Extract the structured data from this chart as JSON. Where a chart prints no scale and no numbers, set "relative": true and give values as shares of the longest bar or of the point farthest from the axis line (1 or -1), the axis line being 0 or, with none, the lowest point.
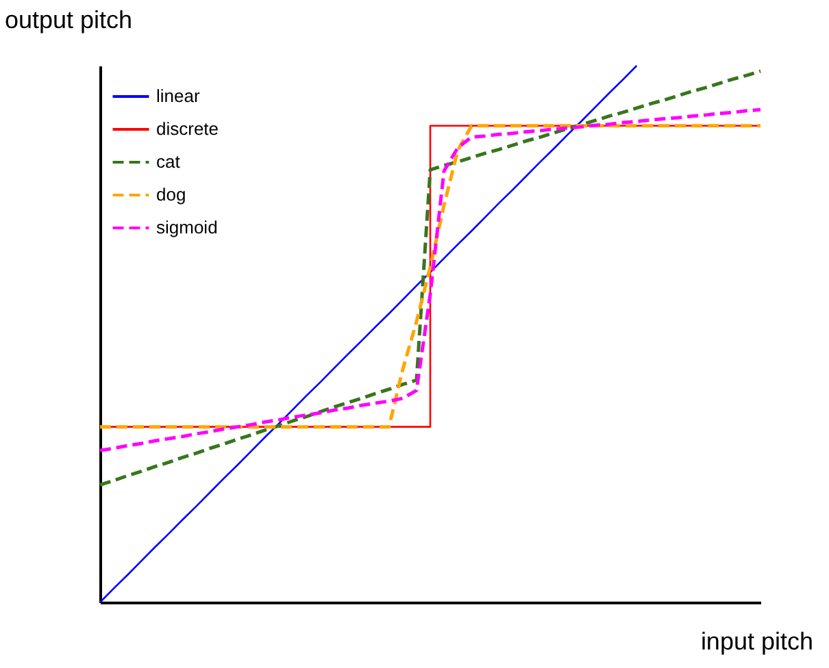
{
  "chart_data": {
    "type": "line",
    "xlabel": "input pitch",
    "ylabel": "output pitch",
    "relative": true,
    "legend": "top left",
    "grid": false,
    "marker": "none",
    "categories": [
      null,
      null,
      null,
      null,
      null,
      null,
      null,
      null,
      null,
      null,
      null,
      null,
      null,
      null,
      null,
      null,
      null,
      null,
      null,
      null,
      null,
      null,
      null,
      null,
      null,
      null,
      null,
      null,
      null,
      null,
      null,
      null,
      null,
      null,
      null,
      null,
      null,
      null,
      null,
      null,
      null,
      null,
      null,
      null,
      null,
      null,
      null,
      null,
      null
    ],
    "series": [
      {
        "name": "linear",
        "color": "#0000ff",
        "line_style": "solid",
        "values": [
          0,
          0.026,
          0.051,
          0.077,
          0.103,
          0.128,
          0.154,
          0.179,
          0.205,
          0.231,
          0.256,
          0.282,
          0.308,
          0.333,
          0.359,
          0.385,
          0.41,
          0.436,
          0.462,
          0.487,
          0.513,
          0.538,
          0.564,
          0.59,
          0.615,
          0.641,
          0.667,
          0.692,
          0.718,
          0.744,
          0.769,
          0.795,
          0.821,
          0.846,
          0.872,
          0.897,
          0.923,
          0.949,
          0.974,
          1.0,
          null,
          null,
          null,
          null,
          null,
          null,
          null,
          null,
          null
        ]
      },
      {
        "name": "discrete",
        "color": "#ff0000",
        "type": "step",
        "line_style": "solid",
        "values": [
          0.327,
          0.327,
          0.327,
          0.327,
          0.327,
          0.327,
          0.327,
          0.327,
          0.327,
          0.327,
          0.327,
          0.327,
          0.327,
          0.327,
          0.327,
          0.327,
          0.327,
          0.327,
          0.327,
          0.327,
          0.327,
          0.327,
          0.327,
          0.327,
          0.888,
          0.888,
          0.888,
          0.888,
          0.888,
          0.888,
          0.888,
          0.888,
          0.888,
          0.888,
          0.888,
          0.888,
          0.888,
          0.888,
          0.888,
          0.888,
          0.888,
          0.888,
          0.888,
          0.888,
          0.888,
          0.888,
          0.888,
          0.888,
          0.888
        ]
      },
      {
        "name": "cat",
        "color": "#38761d",
        "line_style": "dashed",
        "values": [
          0.219,
          0.227,
          0.236,
          0.244,
          0.253,
          0.261,
          0.27,
          0.278,
          0.287,
          0.295,
          0.304,
          0.312,
          0.321,
          0.329,
          0.338,
          0.346,
          0.355,
          0.364,
          0.372,
          0.38,
          0.389,
          0.397,
          0.406,
          0.414,
          0.806,
          0.814,
          0.821,
          0.829,
          0.837,
          0.844,
          0.852,
          0.86,
          0.867,
          0.875,
          0.883,
          0.89,
          0.898,
          0.906,
          0.913,
          0.921,
          0.929,
          0.936,
          0.944,
          0.952,
          0.959,
          0.967,
          0.975,
          0.982,
          0.99
        ]
      },
      {
        "name": "dog",
        "color": "#ffa500",
        "line_style": "dashed",
        "values": [
          0.327,
          0.327,
          0.327,
          0.327,
          0.327,
          0.327,
          0.327,
          0.327,
          0.327,
          0.327,
          0.327,
          0.327,
          0.327,
          0.327,
          0.327,
          0.327,
          0.327,
          0.327,
          0.327,
          0.327,
          0.327,
          0.327,
          0.434,
          0.523,
          0.625,
          0.74,
          0.842,
          0.888,
          0.888,
          0.888,
          0.888,
          0.888,
          0.888,
          0.888,
          0.888,
          0.888,
          0.888,
          0.888,
          0.888,
          0.888,
          0.888,
          0.888,
          0.888,
          0.888,
          0.888,
          0.888,
          0.888,
          0.888,
          0.888
        ]
      },
      {
        "name": "sigmoid",
        "color": "#ff00ff",
        "line_style": "dashed",
        "values": [
          0.283,
          0.287,
          0.292,
          0.296,
          0.301,
          0.305,
          0.309,
          0.314,
          0.318,
          0.323,
          0.327,
          0.331,
          0.336,
          0.34,
          0.345,
          0.349,
          0.353,
          0.358,
          0.362,
          0.367,
          0.371,
          0.375,
          0.38,
          0.395,
          0.574,
          0.804,
          0.847,
          0.867,
          0.869,
          0.872,
          0.874,
          0.877,
          0.879,
          0.882,
          0.884,
          0.886,
          0.889,
          0.891,
          0.894,
          0.896,
          0.899,
          0.901,
          0.903,
          0.906,
          0.908,
          0.911,
          0.913,
          0.916,
          0.918
        ]
      }
    ]
  }
}
